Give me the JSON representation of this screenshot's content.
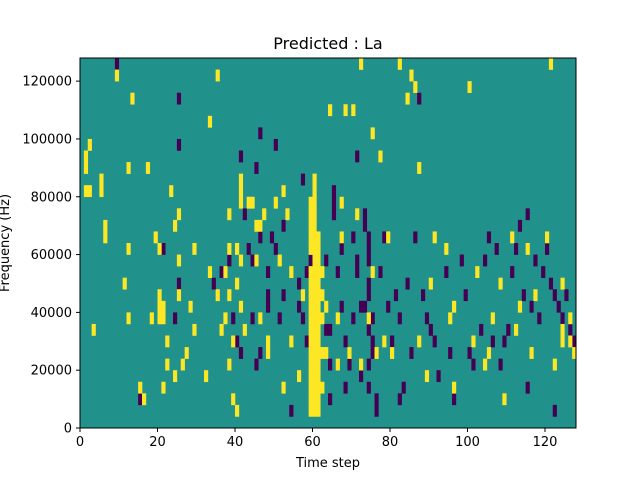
{
  "chart_data": {
    "type": "heatmap",
    "title": "Predicted : La",
    "xlabel": "Time step",
    "ylabel": "Frequency (Hz)",
    "xlim": [
      0,
      128
    ],
    "ylim": [
      0,
      128000
    ],
    "x_ticks": [
      0,
      20,
      40,
      60,
      80,
      100,
      120
    ],
    "y_ticks": [
      0,
      20000,
      40000,
      60000,
      80000,
      100000,
      120000
    ],
    "cell_width": 1,
    "cell_height": 4000,
    "colormap": "viridis",
    "colors": {
      "low": "#440154",
      "mid": "#21918c",
      "high": "#fde725"
    },
    "background_value": 0,
    "grid": false,
    "high_cells": [
      [
        1,
        88000
      ],
      [
        1,
        92000
      ],
      [
        1,
        80000
      ],
      [
        2,
        96000
      ],
      [
        2,
        80000
      ],
      [
        3,
        32000
      ],
      [
        5,
        84000
      ],
      [
        5,
        80000
      ],
      [
        6,
        68000
      ],
      [
        6,
        64000
      ],
      [
        9,
        120000
      ],
      [
        11,
        48000
      ],
      [
        12,
        88000
      ],
      [
        12,
        60000
      ],
      [
        12,
        36000
      ],
      [
        13,
        112000
      ],
      [
        15,
        12000
      ],
      [
        16,
        8000
      ],
      [
        17,
        88000
      ],
      [
        18,
        36000
      ],
      [
        19,
        64000
      ],
      [
        20,
        60000
      ],
      [
        20,
        36000
      ],
      [
        20,
        40000
      ],
      [
        20,
        44000
      ],
      [
        21,
        36000
      ],
      [
        21,
        40000
      ],
      [
        21,
        12000
      ],
      [
        22,
        28000
      ],
      [
        22,
        20000
      ],
      [
        23,
        80000
      ],
      [
        24,
        68000
      ],
      [
        24,
        16000
      ],
      [
        25,
        72000
      ],
      [
        25,
        56000
      ],
      [
        25,
        44000
      ],
      [
        26,
        20000
      ],
      [
        27,
        24000
      ],
      [
        28,
        40000
      ],
      [
        29,
        32000
      ],
      [
        29,
        60000
      ],
      [
        32,
        16000
      ],
      [
        33,
        104000
      ],
      [
        33,
        52000
      ],
      [
        35,
        44000
      ],
      [
        35,
        120000
      ],
      [
        36,
        32000
      ],
      [
        37,
        36000
      ],
      [
        37,
        52000
      ],
      [
        38,
        72000
      ],
      [
        38,
        60000
      ],
      [
        38,
        44000
      ],
      [
        38,
        20000
      ],
      [
        39,
        28000
      ],
      [
        39,
        8000
      ],
      [
        40,
        4000
      ],
      [
        40,
        60000
      ],
      [
        40,
        48000
      ],
      [
        41,
        84000
      ],
      [
        41,
        80000
      ],
      [
        41,
        76000
      ],
      [
        41,
        56000
      ],
      [
        41,
        40000
      ],
      [
        42,
        32000
      ],
      [
        43,
        76000
      ],
      [
        44,
        76000
      ],
      [
        45,
        68000
      ],
      [
        45,
        56000
      ],
      [
        46,
        68000
      ],
      [
        46,
        36000
      ],
      [
        47,
        72000
      ],
      [
        48,
        28000
      ],
      [
        48,
        24000
      ],
      [
        50,
        76000
      ],
      [
        51,
        56000
      ],
      [
        52,
        80000
      ],
      [
        52,
        12000
      ],
      [
        53,
        72000
      ],
      [
        54,
        52000
      ],
      [
        54,
        28000
      ],
      [
        56,
        16000
      ],
      [
        57,
        44000
      ],
      [
        59,
        4000
      ],
      [
        59,
        8000
      ],
      [
        59,
        12000
      ],
      [
        59,
        16000
      ],
      [
        59,
        20000
      ],
      [
        59,
        24000
      ],
      [
        59,
        28000
      ],
      [
        59,
        32000
      ],
      [
        59,
        36000
      ],
      [
        59,
        40000
      ],
      [
        59,
        44000
      ],
      [
        59,
        48000
      ],
      [
        59,
        52000
      ],
      [
        59,
        60000
      ],
      [
        59,
        64000
      ],
      [
        59,
        68000
      ],
      [
        59,
        72000
      ],
      [
        59,
        76000
      ],
      [
        60,
        4000
      ],
      [
        60,
        8000
      ],
      [
        60,
        12000
      ],
      [
        60,
        16000
      ],
      [
        60,
        20000
      ],
      [
        60,
        24000
      ],
      [
        60,
        28000
      ],
      [
        60,
        32000
      ],
      [
        60,
        36000
      ],
      [
        60,
        40000
      ],
      [
        60,
        44000
      ],
      [
        60,
        48000
      ],
      [
        60,
        52000
      ],
      [
        60,
        56000
      ],
      [
        60,
        60000
      ],
      [
        60,
        64000
      ],
      [
        60,
        68000
      ],
      [
        60,
        72000
      ],
      [
        60,
        76000
      ],
      [
        60,
        80000
      ],
      [
        60,
        84000
      ],
      [
        61,
        4000
      ],
      [
        61,
        8000
      ],
      [
        61,
        12000
      ],
      [
        61,
        16000
      ],
      [
        61,
        20000
      ],
      [
        61,
        24000
      ],
      [
        61,
        28000
      ],
      [
        61,
        32000
      ],
      [
        61,
        36000
      ],
      [
        61,
        40000
      ],
      [
        61,
        44000
      ],
      [
        61,
        48000
      ],
      [
        61,
        52000
      ],
      [
        61,
        56000
      ],
      [
        61,
        60000
      ],
      [
        61,
        64000
      ],
      [
        62,
        12000
      ],
      [
        62,
        24000
      ],
      [
        62,
        36000
      ],
      [
        62,
        44000
      ],
      [
        62,
        52000
      ],
      [
        63,
        40000
      ],
      [
        63,
        24000
      ],
      [
        64,
        108000
      ],
      [
        66,
        36000
      ],
      [
        66,
        20000
      ],
      [
        67,
        76000
      ],
      [
        67,
        64000
      ],
      [
        68,
        108000
      ],
      [
        69,
        24000
      ],
      [
        70,
        108000
      ],
      [
        71,
        72000
      ],
      [
        72,
        124000
      ],
      [
        72,
        20000
      ],
      [
        74,
        36000
      ],
      [
        75,
        100000
      ],
      [
        75,
        52000
      ],
      [
        76,
        24000
      ],
      [
        77,
        92000
      ],
      [
        78,
        28000
      ],
      [
        79,
        64000
      ],
      [
        80,
        24000
      ],
      [
        82,
        124000
      ],
      [
        84,
        112000
      ],
      [
        85,
        120000
      ],
      [
        86,
        116000
      ],
      [
        87,
        88000
      ],
      [
        87,
        28000
      ],
      [
        89,
        16000
      ],
      [
        90,
        48000
      ],
      [
        91,
        64000
      ],
      [
        94,
        60000
      ],
      [
        95,
        36000
      ],
      [
        96,
        40000
      ],
      [
        96,
        12000
      ],
      [
        100,
        116000
      ],
      [
        101,
        28000
      ],
      [
        102,
        52000
      ],
      [
        104,
        20000
      ],
      [
        105,
        24000
      ],
      [
        106,
        36000
      ],
      [
        108,
        48000
      ],
      [
        109,
        8000
      ],
      [
        111,
        64000
      ],
      [
        112,
        32000
      ],
      [
        113,
        40000
      ],
      [
        115,
        60000
      ],
      [
        116,
        24000
      ],
      [
        117,
        44000
      ],
      [
        120,
        64000
      ],
      [
        121,
        124000
      ],
      [
        122,
        20000
      ],
      [
        124,
        48000
      ],
      [
        124,
        32000
      ],
      [
        124,
        28000
      ],
      [
        126,
        36000
      ],
      [
        126,
        28000
      ],
      [
        127,
        24000
      ]
    ],
    "low_cells": [
      [
        9,
        124000
      ],
      [
        15,
        8000
      ],
      [
        21,
        60000
      ],
      [
        24,
        36000
      ],
      [
        25,
        48000
      ],
      [
        25,
        96000
      ],
      [
        25,
        112000
      ],
      [
        34,
        48000
      ],
      [
        36,
        52000
      ],
      [
        38,
        56000
      ],
      [
        39,
        36000
      ],
      [
        40,
        28000
      ],
      [
        41,
        24000
      ],
      [
        41,
        92000
      ],
      [
        42,
        72000
      ],
      [
        43,
        60000
      ],
      [
        44,
        36000
      ],
      [
        44,
        56000
      ],
      [
        45,
        20000
      ],
      [
        45,
        88000
      ],
      [
        46,
        24000
      ],
      [
        46,
        64000
      ],
      [
        46,
        100000
      ],
      [
        48,
        40000
      ],
      [
        48,
        44000
      ],
      [
        48,
        52000
      ],
      [
        49,
        64000
      ],
      [
        50,
        60000
      ],
      [
        50,
        96000
      ],
      [
        51,
        36000
      ],
      [
        52,
        44000
      ],
      [
        52,
        68000
      ],
      [
        54,
        4000
      ],
      [
        56,
        40000
      ],
      [
        56,
        48000
      ],
      [
        57,
        36000
      ],
      [
        57,
        84000
      ],
      [
        58,
        28000
      ],
      [
        58,
        52000
      ],
      [
        59,
        56000
      ],
      [
        63,
        32000
      ],
      [
        63,
        56000
      ],
      [
        64,
        8000
      ],
      [
        64,
        20000
      ],
      [
        64,
        32000
      ],
      [
        65,
        72000
      ],
      [
        65,
        76000
      ],
      [
        65,
        80000
      ],
      [
        66,
        52000
      ],
      [
        67,
        40000
      ],
      [
        67,
        60000
      ],
      [
        68,
        12000
      ],
      [
        68,
        28000
      ],
      [
        69,
        20000
      ],
      [
        70,
        64000
      ],
      [
        70,
        36000
      ],
      [
        71,
        52000
      ],
      [
        71,
        56000
      ],
      [
        71,
        92000
      ],
      [
        72,
        16000
      ],
      [
        72,
        40000
      ],
      [
        73,
        40000
      ],
      [
        73,
        68000
      ],
      [
        73,
        72000
      ],
      [
        74,
        12000
      ],
      [
        74,
        20000
      ],
      [
        74,
        32000
      ],
      [
        74,
        44000
      ],
      [
        74,
        48000
      ],
      [
        74,
        56000
      ],
      [
        74,
        60000
      ],
      [
        74,
        64000
      ],
      [
        75,
        36000
      ],
      [
        75,
        28000
      ],
      [
        75,
        24000
      ],
      [
        76,
        8000
      ],
      [
        76,
        4000
      ],
      [
        77,
        52000
      ],
      [
        78,
        64000
      ],
      [
        79,
        40000
      ],
      [
        80,
        28000
      ],
      [
        81,
        44000
      ],
      [
        82,
        36000
      ],
      [
        82,
        8000
      ],
      [
        83,
        12000
      ],
      [
        84,
        48000
      ],
      [
        85,
        24000
      ],
      [
        86,
        64000
      ],
      [
        87,
        112000
      ],
      [
        88,
        44000
      ],
      [
        89,
        36000
      ],
      [
        90,
        32000
      ],
      [
        91,
        28000
      ],
      [
        92,
        16000
      ],
      [
        94,
        52000
      ],
      [
        95,
        24000
      ],
      [
        96,
        8000
      ],
      [
        98,
        56000
      ],
      [
        99,
        44000
      ],
      [
        100,
        24000
      ],
      [
        101,
        20000
      ],
      [
        103,
        32000
      ],
      [
        104,
        56000
      ],
      [
        106,
        28000
      ],
      [
        107,
        60000
      ],
      [
        108,
        20000
      ],
      [
        109,
        28000
      ],
      [
        110,
        32000
      ],
      [
        111,
        52000
      ],
      [
        112,
        60000
      ],
      [
        113,
        68000
      ],
      [
        114,
        44000
      ],
      [
        115,
        12000
      ],
      [
        116,
        40000
      ],
      [
        117,
        56000
      ],
      [
        118,
        36000
      ],
      [
        119,
        52000
      ],
      [
        120,
        60000
      ],
      [
        121,
        48000
      ],
      [
        122,
        44000
      ],
      [
        122,
        4000
      ],
      [
        123,
        40000
      ],
      [
        124,
        36000
      ],
      [
        125,
        44000
      ],
      [
        126,
        32000
      ],
      [
        127,
        28000
      ],
      [
        105,
        64000
      ],
      [
        115,
        72000
      ]
    ]
  }
}
